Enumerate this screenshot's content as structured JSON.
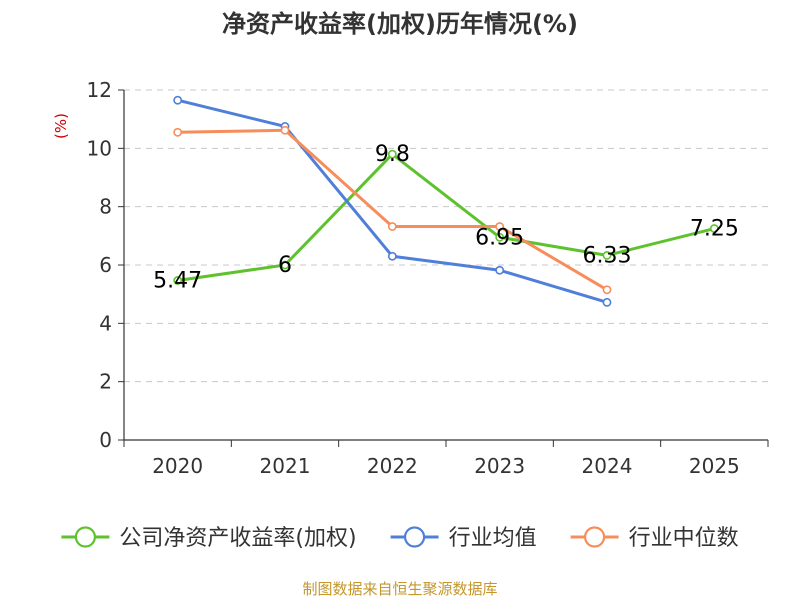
{
  "chart_data": {
    "type": "line",
    "title": "净资产收益率(加权)历年情况(%)",
    "ylabel": "(%)",
    "xlabel": "",
    "categories": [
      "2020",
      "2021",
      "2022",
      "2023",
      "2024",
      "2025"
    ],
    "ylim": [
      0,
      12
    ],
    "yticks": [
      0,
      2,
      4,
      6,
      8,
      10,
      12
    ],
    "grid": true,
    "legend_position": "bottom",
    "series": [
      {
        "name": "公司净资产收益率(加权)",
        "color": "#5ec22e",
        "values": [
          5.47,
          6,
          9.8,
          6.95,
          6.33,
          7.25
        ],
        "labels": [
          "5.47",
          "6",
          "9.8",
          "6.95",
          "6.33",
          "7.25"
        ],
        "show_labels": true
      },
      {
        "name": "行业均值",
        "color": "#4f7fd8",
        "values": [
          11.65,
          10.75,
          6.3,
          5.82,
          4.72,
          null
        ],
        "show_labels": false
      },
      {
        "name": "行业中位数",
        "color": "#f78d5a",
        "values": [
          10.55,
          10.62,
          7.32,
          7.32,
          5.15,
          null
        ],
        "show_labels": false
      }
    ],
    "source": "制图数据来自恒生聚源数据库"
  },
  "colors": {
    "title": "#333333",
    "axis_text": "#333333",
    "ylabel": "#cc0000",
    "grid": "#c8c8c8",
    "source": "#c4962c"
  }
}
